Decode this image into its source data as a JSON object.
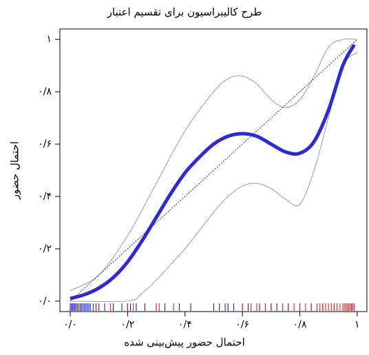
{
  "chart_data": {
    "type": "line",
    "title": "طرح کالیبراسیون برای تقسیم اعتبار",
    "x_label": "احتمال حضور پیش‌بینی شده",
    "y_label": "احتمال حضور",
    "xlim": [
      -0.036,
      1.034
    ],
    "ylim": [
      -0.04,
      1.04
    ],
    "xticks": [
      {
        "value": 0,
        "label": "۰/۰"
      },
      {
        "value": 0.2,
        "label": "۰/۲"
      },
      {
        "value": 0.4,
        "label": "۰/۴"
      },
      {
        "value": 0.6,
        "label": "۰/۶"
      },
      {
        "value": 0.8,
        "label": "۰/۸"
      },
      {
        "value": 1,
        "label": "۱"
      }
    ],
    "yticks": [
      {
        "value": 0,
        "label": "۰/۰"
      },
      {
        "value": 0.2,
        "label": "۰/۲"
      },
      {
        "value": 0.4,
        "label": "۰/۴"
      },
      {
        "value": 0.6,
        "label": "۰/۶"
      },
      {
        "value": 0.8,
        "label": "۰/۸"
      },
      {
        "value": 1,
        "label": "۱"
      }
    ],
    "series": [
      {
        "color": "#9a9a9a",
        "width": 1,
        "x": [
          0,
          0.1,
          0.2,
          0.3,
          0.4,
          0.5,
          0.55,
          0.6,
          0.65,
          0.7,
          0.75,
          0.8,
          0.85,
          0.9,
          0.95,
          1.0
        ],
        "values": [
          0.04,
          0.1,
          0.25,
          0.45,
          0.65,
          0.8,
          0.85,
          0.86,
          0.83,
          0.77,
          0.74,
          0.77,
          0.86,
          0.97,
          1.0,
          1.0
        ]
      },
      {
        "color": "#9a9a9a",
        "width": 1,
        "x": [
          0,
          0.2,
          0.25,
          0.3,
          0.35,
          0.4,
          0.45,
          0.5,
          0.55,
          0.6,
          0.65,
          0.7,
          0.75,
          0.8,
          0.85,
          0.9,
          0.95,
          1.0
        ],
        "values": [
          0,
          0,
          0.03,
          0.08,
          0.14,
          0.2,
          0.27,
          0.34,
          0.4,
          0.44,
          0.45,
          0.43,
          0.39,
          0.37,
          0.5,
          0.7,
          0.9,
          0.95
        ]
      },
      {
        "color": "#000000",
        "width": 0.8,
        "dash": true,
        "x": [
          0,
          1
        ],
        "values": [
          0,
          1
        ]
      },
      {
        "color": "#2a2ad8",
        "width": 5,
        "x": [
          0,
          0.05,
          0.1,
          0.15,
          0.2,
          0.25,
          0.3,
          0.35,
          0.4,
          0.45,
          0.5,
          0.55,
          0.6,
          0.65,
          0.7,
          0.75,
          0.8,
          0.85,
          0.9,
          0.95,
          0.99
        ],
        "values": [
          0.01,
          0.025,
          0.05,
          0.09,
          0.15,
          0.23,
          0.32,
          0.41,
          0.49,
          0.55,
          0.6,
          0.63,
          0.64,
          0.63,
          0.6,
          0.57,
          0.565,
          0.61,
          0.73,
          0.9,
          0.98
        ]
      }
    ],
    "rug": [
      {
        "color": "#0000ff",
        "x": [
          0.0,
          0.004,
          0.008,
          0.012,
          0.016,
          0.02,
          0.025,
          0.03,
          0.035,
          0.04,
          0.045,
          0.05,
          0.055,
          0.06,
          0.065,
          0.07,
          0.08,
          0.09,
          0.1,
          0.12,
          0.15,
          0.18,
          0.2,
          0.21,
          0.23,
          0.26,
          0.3,
          0.33,
          0.38,
          0.42,
          0.5,
          0.52,
          0.54,
          0.55,
          0.57,
          0.6,
          0.62,
          0.66,
          0.7,
          0.72,
          0.76,
          0.8,
          0.84,
          0.88,
          0.92
        ]
      },
      {
        "color": "#ff0000",
        "x": [
          0.03,
          0.1,
          0.14,
          0.2,
          0.22,
          0.3,
          0.31,
          0.36,
          0.55,
          0.6,
          0.63,
          0.65,
          0.68,
          0.7,
          0.74,
          0.78,
          0.8,
          0.82,
          0.84,
          0.86,
          0.87,
          0.88,
          0.89,
          0.9,
          0.91,
          0.92,
          0.93,
          0.94,
          0.95,
          0.955,
          0.96,
          0.965,
          0.97,
          0.975,
          0.98,
          0.985,
          0.99
        ]
      }
    ]
  }
}
